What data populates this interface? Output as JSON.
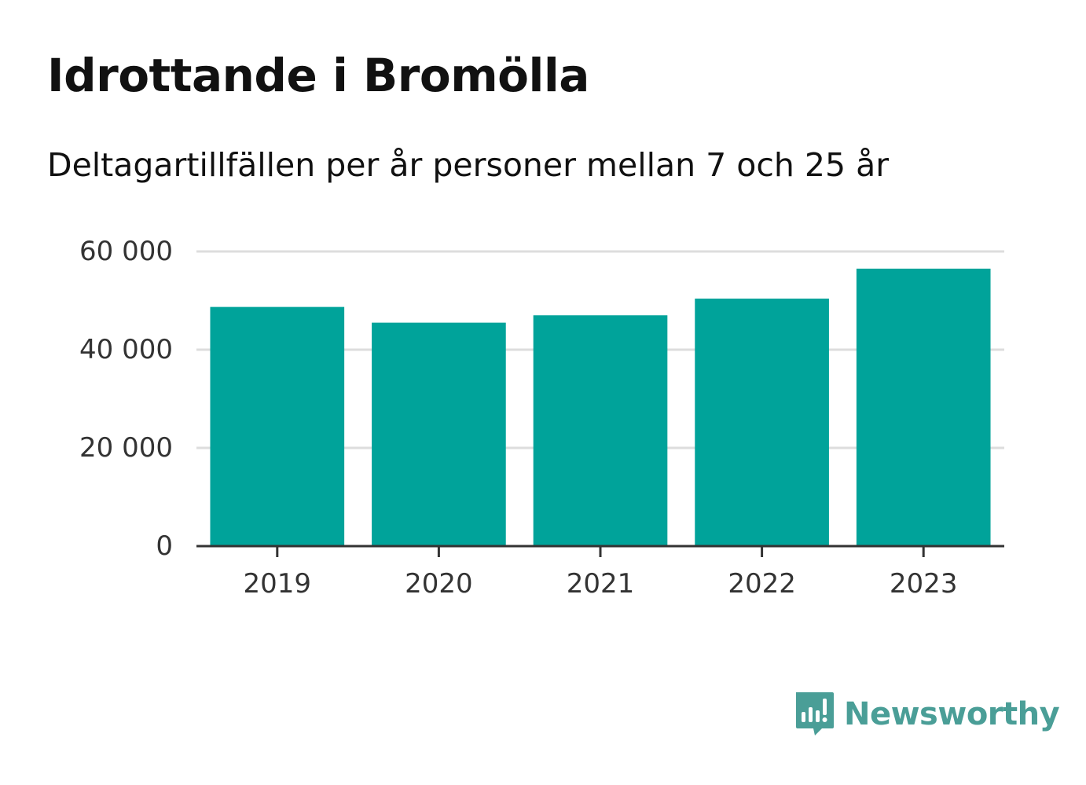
{
  "brand": {
    "name": "Newsworthy",
    "color": "#4a9e97"
  },
  "chart_data": {
    "type": "bar",
    "title": "Idrottande i Bromölla",
    "subtitle": "Deltagartillfällen per år personer mellan 7 och 25 år",
    "categories": [
      "2019",
      "2020",
      "2021",
      "2022",
      "2023"
    ],
    "values": [
      48700,
      45500,
      47000,
      50400,
      56500
    ],
    "ylim": [
      0,
      60000
    ],
    "yticks": [
      0,
      20000,
      40000,
      60000
    ],
    "ytick_labels": [
      "0",
      "20 000",
      "40 000",
      "60 000"
    ],
    "xlabel": "",
    "ylabel": "",
    "grid": true,
    "bar_color": "#00a39a",
    "grid_color": "#dddddd",
    "axis_color": "#333333"
  }
}
